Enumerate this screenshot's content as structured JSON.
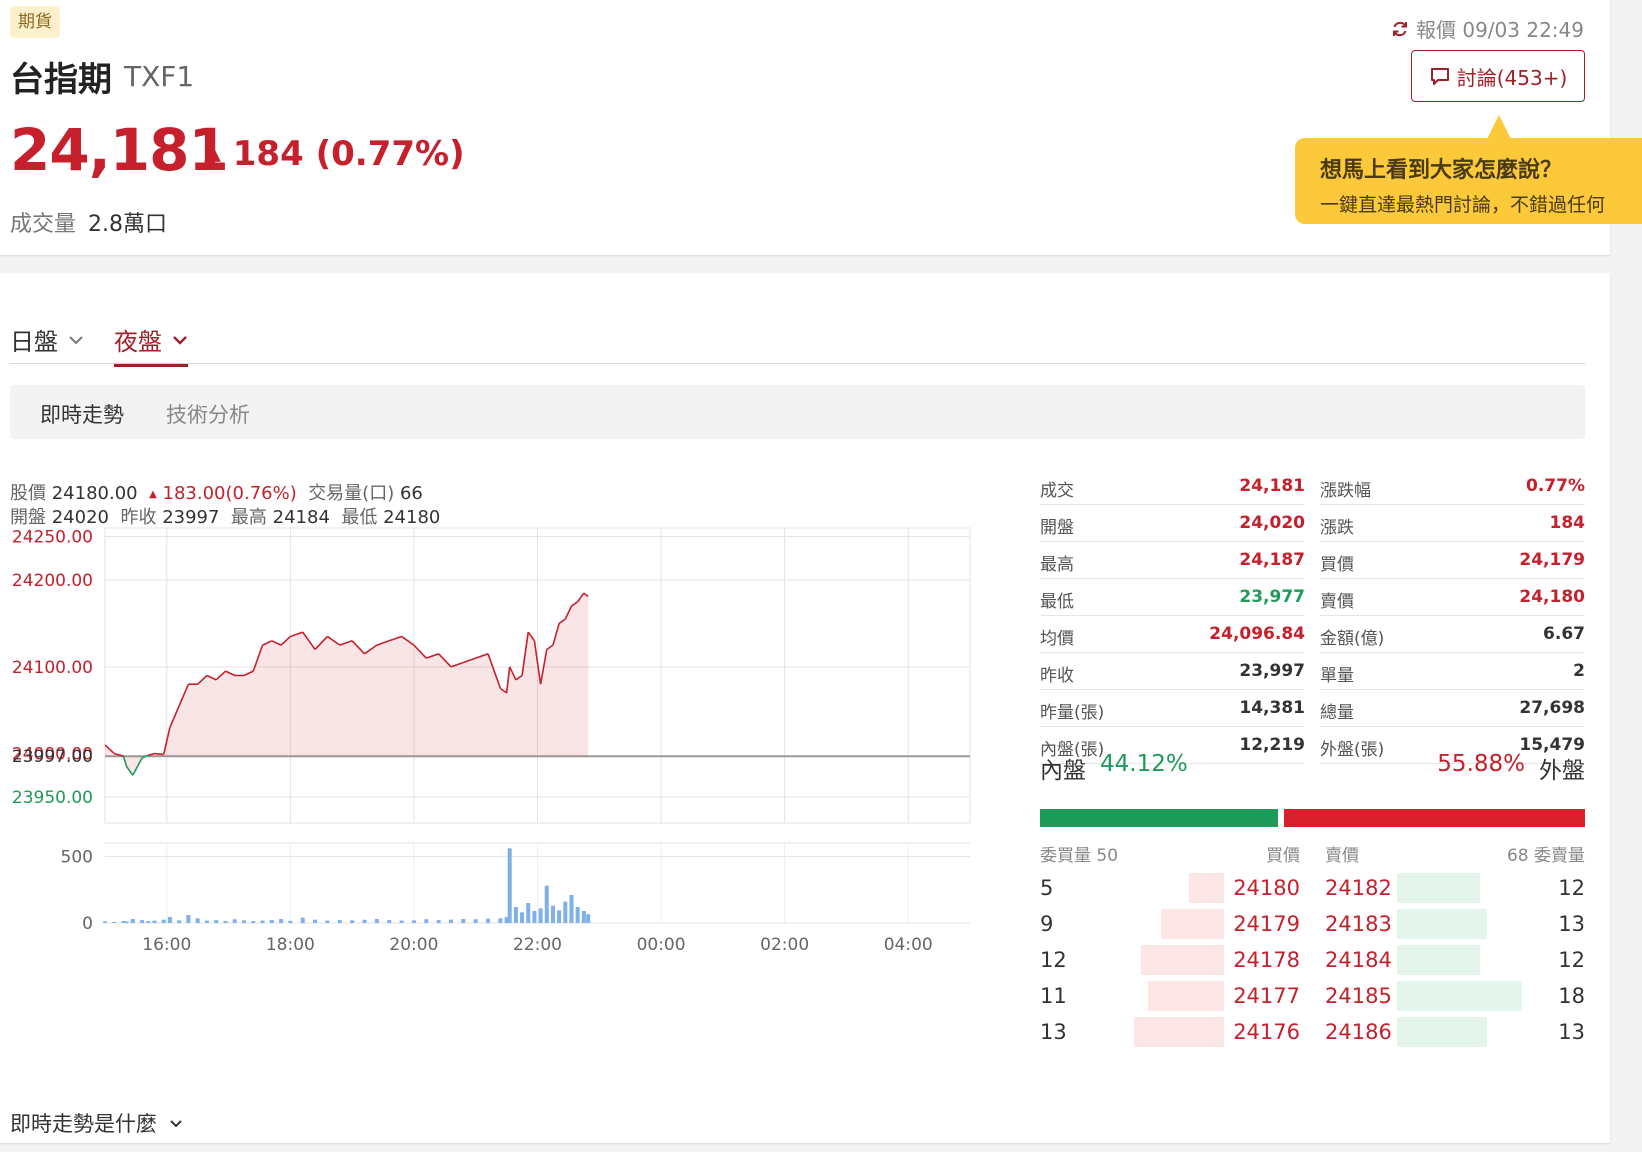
{
  "header": {
    "tag": "期貨",
    "title": "台指期",
    "code": "TXF1",
    "price": "24,181",
    "change_arrow": "▲",
    "change": "184",
    "change_pct": "(0.77%)",
    "volume_label": "成交量",
    "volume_value": "2.8萬口",
    "quote_time": "報價 09/03 22:49",
    "discuss_label": "討論(453+)",
    "tooltip_title": "想馬上看到大家怎麼說？",
    "tooltip_body": "一鍵直達最熱門討論，不錯過任何"
  },
  "session_tabs": [
    {
      "label": "日盤",
      "active": false
    },
    {
      "label": "夜盤",
      "active": true
    }
  ],
  "sub_tabs": [
    {
      "label": "即時走勢",
      "active": true
    },
    {
      "label": "技術分析",
      "active": false
    }
  ],
  "chart_info": {
    "price_label": "股價",
    "price": "24180.00",
    "change": "183.00(0.76%)",
    "volume_label": "交易量(口)",
    "volume": "66",
    "open_label": "開盤",
    "open": "24020",
    "prev_label": "昨收",
    "prev": "23997",
    "high_label": "最高",
    "high": "24184",
    "low_label": "最低",
    "low": "24180"
  },
  "chart_data": {
    "type": "line",
    "x_tick_labels": [
      "16:00",
      "18:00",
      "20:00",
      "22:00",
      "00:00",
      "02:00",
      "04:00"
    ],
    "y_tick_labels": [
      "24250.00",
      "24200.00",
      "24100.00",
      "24000.00",
      "23997.00",
      "23950.00"
    ],
    "volume_tick_labels": [
      "500",
      "0"
    ],
    "reference_price": 23997,
    "ylim": [
      23920,
      24260
    ],
    "volume_ylim": [
      0,
      600
    ],
    "x_range_hours": [
      15,
      29
    ],
    "series": [
      {
        "x": [
          15.0,
          15.15,
          15.3,
          15.35,
          15.45,
          15.6,
          15.7,
          15.8,
          15.95,
          16.05,
          16.2,
          16.35,
          16.5,
          16.65,
          16.8,
          16.95,
          17.1,
          17.25,
          17.4,
          17.55,
          17.7,
          17.85,
          18.0,
          18.2,
          18.4,
          18.6,
          18.8,
          19.0,
          19.2,
          19.4,
          19.6,
          19.8,
          20.0,
          20.2,
          20.4,
          20.6,
          20.8,
          21.0,
          21.2,
          21.4,
          21.5,
          21.55,
          21.65,
          21.75,
          21.85,
          21.95,
          22.05,
          22.15,
          22.25,
          22.35,
          22.45,
          22.55,
          22.65,
          22.75,
          22.82
        ],
        "y": [
          24010,
          24000,
          23997,
          23985,
          23975,
          23995,
          23998,
          24000,
          23999,
          24030,
          24055,
          24080,
          24080,
          24090,
          24085,
          24095,
          24090,
          24090,
          24095,
          24125,
          24130,
          24125,
          24135,
          24140,
          24120,
          24135,
          24125,
          24130,
          24115,
          24125,
          24130,
          24135,
          24125,
          24110,
          24115,
          24100,
          24105,
          24110,
          24115,
          24075,
          24070,
          24100,
          24085,
          24090,
          24140,
          24130,
          24080,
          24120,
          24125,
          24150,
          24155,
          24170,
          24175,
          24185,
          24181
        ],
        "name": ""
      }
    ],
    "volume": [
      12,
      8,
      15,
      10,
      30,
      22,
      14,
      18,
      25,
      45,
      20,
      60,
      35,
      18,
      22,
      15,
      28,
      20,
      15,
      18,
      22,
      30,
      16,
      40,
      25,
      18,
      22,
      20,
      24,
      30,
      22,
      18,
      20,
      28,
      22,
      25,
      30,
      28,
      32,
      35,
      45,
      560,
      120,
      80,
      150,
      90,
      110,
      280,
      130,
      95,
      160,
      210,
      120,
      90,
      66
    ]
  },
  "stats": [
    {
      "label": "成交",
      "value": "24,181",
      "color": "#c5202c"
    },
    {
      "label": "漲跌幅",
      "value": "0.77%",
      "color": "#c5202c"
    },
    {
      "label": "開盤",
      "value": "24,020",
      "color": "#c5202c"
    },
    {
      "label": "漲跌",
      "value": "184",
      "color": "#c5202c"
    },
    {
      "label": "最高",
      "value": "24,187",
      "color": "#c5202c"
    },
    {
      "label": "買價",
      "value": "24,179",
      "color": "#c5202c"
    },
    {
      "label": "最低",
      "value": "23,977",
      "color": "#1e9a5a"
    },
    {
      "label": "賣價",
      "value": "24,180",
      "color": "#c5202c"
    },
    {
      "label": "均價",
      "value": "24,096.84",
      "color": "#c5202c"
    },
    {
      "label": "金額(億)",
      "value": "6.67",
      "color": "#333333"
    },
    {
      "label": "昨收",
      "value": "23,997",
      "color": "#333333"
    },
    {
      "label": "單量",
      "value": "2",
      "color": "#333333"
    },
    {
      "label": "昨量(張)",
      "value": "14,381",
      "color": "#333333"
    },
    {
      "label": "總量",
      "value": "27,698",
      "color": "#333333"
    },
    {
      "label": "內盤(張)",
      "value": "12,219",
      "color": "#333333"
    },
    {
      "label": "外盤(張)",
      "value": "15,479",
      "color": "#333333"
    }
  ],
  "ratio": {
    "inner_label": "內盤",
    "inner_pct": "44.12%",
    "inner_value": 44.12,
    "outer_pct": "55.88%",
    "outer_value": 55.88,
    "outer_label": "外盤"
  },
  "order_book": {
    "buy_qty_label": "委買量 50",
    "buy_price_label": "買價",
    "sell_price_label": "賣價",
    "sell_qty_label": "68 委賣量",
    "rows": [
      {
        "buy_qty": "5",
        "buy_price": "24180",
        "sell_price": "24182",
        "sell_qty": "12"
      },
      {
        "buy_qty": "9",
        "buy_price": "24179",
        "sell_price": "24183",
        "sell_qty": "13"
      },
      {
        "buy_qty": "12",
        "buy_price": "24178",
        "sell_price": "24184",
        "sell_qty": "12"
      },
      {
        "buy_qty": "11",
        "buy_price": "24177",
        "sell_price": "24185",
        "sell_qty": "18"
      },
      {
        "buy_qty": "13",
        "buy_price": "24176",
        "sell_price": "24186",
        "sell_qty": "13"
      }
    ],
    "max_qty": 18
  },
  "faq_label": "即時走勢是什麼"
}
